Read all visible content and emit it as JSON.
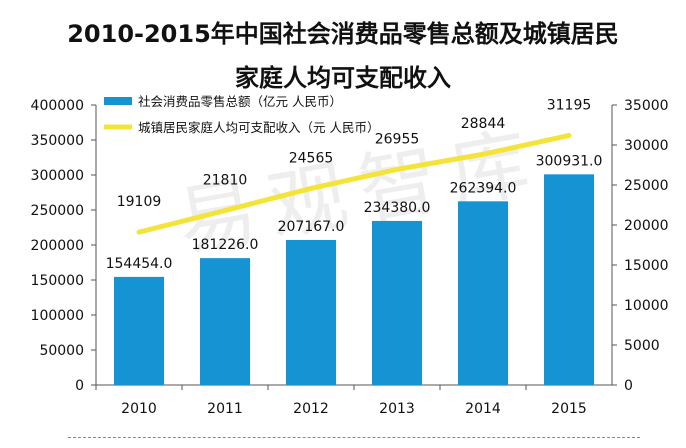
{
  "title": {
    "line1": "2010-2015年中国社会消费品零售总额及城镇居民",
    "line2": "家庭人均可支配收入"
  },
  "watermark": "易观智库",
  "colors": {
    "bar": "#1593d2",
    "line": "#f4e43a",
    "axis": "#555555",
    "text": "#111111"
  },
  "chart_data": {
    "type": "bar",
    "title": "2010-2015年中国社会消费品零售总额及城镇居民家庭人均可支配收入",
    "categories": [
      "2010",
      "2011",
      "2012",
      "2013",
      "2014",
      "2015"
    ],
    "series": [
      {
        "name": "社会消费品零售总额（亿元 人民币）",
        "type": "bar",
        "axis": "left",
        "values": [
          154454.0,
          181226.0,
          207167.0,
          234380.0,
          262394.0,
          300931.0
        ],
        "labels": [
          "154454.0",
          "181226.0",
          "207167.0",
          "234380.0",
          "262394.0",
          "300931.0"
        ]
      },
      {
        "name": "城镇居民家庭人均可支配收入（元 人民币）",
        "type": "line",
        "axis": "right",
        "values": [
          19109,
          21810,
          24565,
          26955,
          28844,
          31195
        ],
        "labels": [
          "19109",
          "21810",
          "24565",
          "26955",
          "28844",
          "31195"
        ]
      }
    ],
    "y_left": {
      "ylim": [
        0,
        400000
      ],
      "ticks": [
        "0",
        "50000",
        "100000",
        "150000",
        "200000",
        "250000",
        "300000",
        "350000",
        "400000"
      ]
    },
    "y_right": {
      "ylim": [
        0,
        35000
      ],
      "ticks": [
        "0",
        "5000",
        "10000",
        "15000",
        "20000",
        "25000",
        "30000",
        "35000"
      ]
    },
    "legend": "top-left",
    "grid": false
  }
}
